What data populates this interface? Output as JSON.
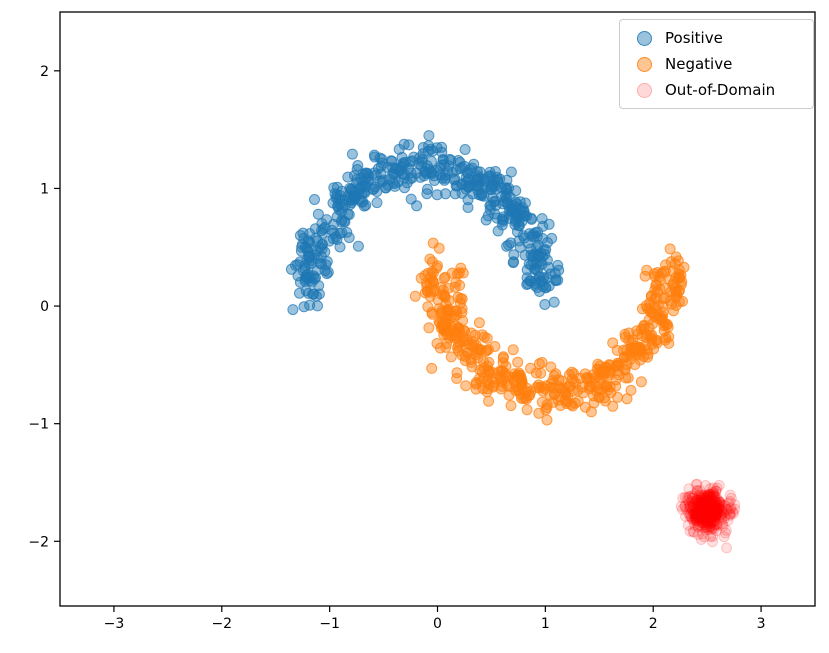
{
  "figure": {
    "background": "#ffffff",
    "spine_color": "#000000",
    "tick_color": "#000000"
  },
  "chart_data": {
    "type": "scatter",
    "title": "",
    "xlabel": "",
    "ylabel": "",
    "xlim": [
      -3.5,
      3.5
    ],
    "ylim": [
      -2.55,
      2.5
    ],
    "xticks": [
      -3,
      -2,
      -1,
      0,
      1,
      2,
      3
    ],
    "yticks": [
      -2,
      -1,
      0,
      1,
      2
    ],
    "grid": false,
    "legend_position": "upper right",
    "random_seed": 42,
    "series": [
      {
        "name": "Positive",
        "color": "#1f77b4",
        "alpha": 0.45,
        "marker_radius_px": 5,
        "n_points": 500,
        "distribution": "half-moon",
        "center": [
          -0.125,
          0.1
        ],
        "radius": 1.08,
        "arc_degrees": [
          0,
          180
        ],
        "noise_std": 0.1,
        "approx_x_range": [
          -1.3,
          1.0
        ],
        "approx_y_range": [
          0.0,
          1.45
        ]
      },
      {
        "name": "Negative",
        "color": "#ff7f0e",
        "alpha": 0.45,
        "marker_radius_px": 5,
        "n_points": 500,
        "distribution": "half-moon",
        "center": [
          1.075,
          0.35
        ],
        "radius": 1.08,
        "arc_degrees": [
          180,
          360
        ],
        "noise_std": 0.1,
        "approx_x_range": [
          -0.15,
          2.25
        ],
        "approx_y_range": [
          -1.05,
          0.5
        ]
      },
      {
        "name": "Out-of-Domain",
        "color": "#ff0000",
        "alpha": 0.12,
        "marker_radius_px": 5,
        "n_points": 400,
        "distribution": "gaussian-blob",
        "center": [
          2.5,
          -1.75
        ],
        "radius": 0,
        "arc_degrees": [
          0,
          0
        ],
        "noise_std": 0.09,
        "approx_x_range": [
          2.2,
          2.9
        ],
        "approx_y_range": [
          -2.1,
          -1.45
        ]
      }
    ]
  }
}
